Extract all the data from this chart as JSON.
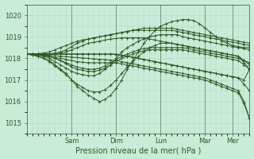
{
  "title": "",
  "xlabel": "Pression niveau de la mer( hPa )",
  "ylabel": "",
  "bg_color": "#c8ecd8",
  "grid_color": "#b0d8c0",
  "line_color": "#2d5a27",
  "marker": "+",
  "markersize": 3,
  "linewidth": 0.7,
  "ylim": [
    1014.5,
    1020.5
  ],
  "yticks": [
    1015,
    1016,
    1017,
    1018,
    1019,
    1020
  ],
  "day_tick_labels": [
    "Sam",
    "Dim",
    "Lun",
    "Mar",
    "Mer"
  ],
  "series": [
    {
      "x": [
        0,
        1,
        2,
        3,
        4,
        5,
        6,
        7,
        8,
        9,
        10,
        11,
        12,
        13,
        14,
        15,
        16,
        17,
        18,
        19,
        20,
        21,
        22,
        23,
        24,
        25,
        26,
        27,
        28,
        29,
        30,
        31,
        32,
        33,
        34,
        35,
        36,
        37,
        38,
        39,
        40
      ],
      "y": [
        1018.2,
        1018.15,
        1018.1,
        1018.0,
        1017.9,
        1017.7,
        1017.5,
        1017.3,
        1017.0,
        1016.7,
        1016.5,
        1016.3,
        1016.15,
        1016.0,
        1016.1,
        1016.3,
        1016.6,
        1017.0,
        1017.5,
        1017.9,
        1018.3,
        1018.7,
        1019.0,
        1019.3,
        1019.5,
        1019.6,
        1019.7,
        1019.75,
        1019.8,
        1019.8,
        1019.75,
        1019.6,
        1019.4,
        1019.2,
        1019.0,
        1018.8,
        1018.7,
        1018.6,
        1018.55,
        1018.5,
        1018.5
      ]
    },
    {
      "x": [
        0,
        1,
        2,
        3,
        4,
        5,
        6,
        7,
        8,
        9,
        10,
        11,
        12,
        13,
        14,
        15,
        16,
        17,
        18,
        19,
        20,
        21,
        22,
        23,
        24,
        25,
        26,
        27,
        28,
        29,
        30,
        31,
        32,
        33,
        34,
        35,
        36,
        37,
        38,
        39,
        40
      ],
      "y": [
        1018.2,
        1018.18,
        1018.15,
        1018.1,
        1018.0,
        1017.85,
        1017.7,
        1017.55,
        1017.4,
        1017.3,
        1017.25,
        1017.2,
        1017.2,
        1017.3,
        1017.5,
        1017.7,
        1018.0,
        1018.3,
        1018.5,
        1018.65,
        1018.8,
        1018.9,
        1019.0,
        1019.05,
        1019.1,
        1019.1,
        1019.1,
        1019.1,
        1019.0,
        1018.95,
        1018.9,
        1018.85,
        1018.8,
        1018.75,
        1018.7,
        1018.65,
        1018.6,
        1018.55,
        1018.5,
        1018.45,
        1018.4
      ]
    },
    {
      "x": [
        0,
        1,
        2,
        3,
        4,
        5,
        6,
        7,
        8,
        9,
        10,
        11,
        12,
        13,
        14,
        15,
        16,
        17,
        18,
        19,
        20,
        21,
        22,
        23,
        24,
        25,
        26,
        27,
        28,
        29,
        30,
        31,
        32,
        33,
        34,
        35,
        36,
        37,
        38,
        39,
        40
      ],
      "y": [
        1018.2,
        1018.2,
        1018.2,
        1018.2,
        1018.2,
        1018.25,
        1018.3,
        1018.4,
        1018.55,
        1018.7,
        1018.8,
        1018.9,
        1018.95,
        1019.0,
        1019.05,
        1019.1,
        1019.15,
        1019.2,
        1019.25,
        1019.3,
        1019.3,
        1019.3,
        1019.3,
        1019.3,
        1019.3,
        1019.3,
        1019.3,
        1019.25,
        1019.2,
        1019.15,
        1019.1,
        1019.05,
        1019.0,
        1018.95,
        1018.9,
        1018.85,
        1018.8,
        1018.75,
        1018.7,
        1018.65,
        1018.6
      ]
    },
    {
      "x": [
        0,
        1,
        2,
        3,
        4,
        5,
        6,
        7,
        8,
        9,
        10,
        11,
        12,
        13,
        14,
        15,
        16,
        17,
        18,
        19,
        20,
        21,
        22,
        23,
        24,
        25,
        26,
        27,
        28,
        29,
        30,
        31,
        32,
        33,
        34,
        35,
        36,
        37,
        38,
        39,
        40
      ],
      "y": [
        1018.2,
        1018.2,
        1018.22,
        1018.25,
        1018.3,
        1018.4,
        1018.5,
        1018.6,
        1018.7,
        1018.8,
        1018.85,
        1018.9,
        1018.95,
        1019.0,
        1019.05,
        1019.1,
        1019.15,
        1019.2,
        1019.25,
        1019.3,
        1019.35,
        1019.4,
        1019.4,
        1019.4,
        1019.4,
        1019.4,
        1019.4,
        1019.35,
        1019.3,
        1019.25,
        1019.2,
        1019.15,
        1019.1,
        1019.05,
        1019.0,
        1018.95,
        1018.9,
        1018.85,
        1018.8,
        1018.75,
        1018.7
      ]
    },
    {
      "x": [
        0,
        1,
        2,
        3,
        4,
        5,
        6,
        7,
        8,
        9,
        10,
        11,
        12,
        13,
        14,
        15,
        16,
        17,
        18,
        19,
        20,
        21,
        22,
        23,
        24,
        25,
        26,
        27,
        28,
        29,
        30,
        31,
        32,
        33,
        34,
        35,
        36,
        37,
        38,
        39,
        40
      ],
      "y": [
        1018.2,
        1018.2,
        1018.18,
        1018.15,
        1018.1,
        1018.0,
        1017.9,
        1017.8,
        1017.7,
        1017.6,
        1017.55,
        1017.5,
        1017.5,
        1017.55,
        1017.65,
        1017.8,
        1017.95,
        1018.1,
        1018.2,
        1018.3,
        1018.4,
        1018.45,
        1018.5,
        1018.5,
        1018.5,
        1018.5,
        1018.5,
        1018.5,
        1018.5,
        1018.45,
        1018.4,
        1018.35,
        1018.3,
        1018.25,
        1018.2,
        1018.15,
        1018.1,
        1018.05,
        1018.0,
        1017.9,
        1017.8
      ]
    },
    {
      "x": [
        0,
        1,
        2,
        3,
        4,
        5,
        6,
        7,
        8,
        9,
        10,
        11,
        12,
        13,
        14,
        15,
        16,
        17,
        18,
        19,
        20,
        21,
        22,
        23,
        24,
        25,
        26,
        27,
        28,
        29,
        30,
        31,
        32,
        33,
        34,
        35,
        36,
        37,
        38,
        39,
        40
      ],
      "y": [
        1018.2,
        1018.2,
        1018.18,
        1018.15,
        1018.1,
        1018.0,
        1017.9,
        1017.75,
        1017.6,
        1017.5,
        1017.45,
        1017.4,
        1017.4,
        1017.45,
        1017.55,
        1017.7,
        1017.85,
        1018.0,
        1018.1,
        1018.2,
        1018.3,
        1018.35,
        1018.4,
        1018.4,
        1018.4,
        1018.4,
        1018.4,
        1018.4,
        1018.4,
        1018.35,
        1018.3,
        1018.25,
        1018.2,
        1018.15,
        1018.1,
        1018.05,
        1018.0,
        1017.95,
        1017.9,
        1017.7,
        1017.5
      ]
    },
    {
      "x": [
        0,
        1,
        2,
        3,
        4,
        5,
        6,
        7,
        8,
        9,
        10,
        11,
        12,
        13,
        14,
        15,
        16,
        17,
        18,
        19,
        20,
        21,
        22,
        23,
        24,
        25,
        26,
        27,
        28,
        29,
        30,
        31,
        32,
        33,
        34,
        35,
        36,
        37,
        38,
        39,
        40
      ],
      "y": [
        1018.2,
        1018.15,
        1018.1,
        1018.0,
        1017.85,
        1017.65,
        1017.45,
        1017.25,
        1017.0,
        1016.8,
        1016.65,
        1016.5,
        1016.45,
        1016.45,
        1016.55,
        1016.75,
        1017.0,
        1017.3,
        1017.6,
        1017.85,
        1018.1,
        1018.3,
        1018.5,
        1018.6,
        1018.7,
        1018.7,
        1018.7,
        1018.65,
        1018.6,
        1018.55,
        1018.5,
        1018.45,
        1018.4,
        1018.35,
        1018.3,
        1018.25,
        1018.2,
        1018.15,
        1018.1,
        1017.9,
        1017.7
      ]
    },
    {
      "x": [
        0,
        1,
        2,
        3,
        4,
        5,
        6,
        7,
        8,
        9,
        10,
        11,
        12,
        13,
        14,
        15,
        16,
        17,
        18,
        19,
        20,
        21,
        22,
        23,
        24,
        25,
        26,
        27,
        28,
        29,
        30,
        31,
        32,
        33,
        34,
        35,
        36,
        37,
        38,
        39,
        40
      ],
      "y": [
        1018.2,
        1018.2,
        1018.2,
        1018.2,
        1018.2,
        1018.2,
        1018.2,
        1018.2,
        1018.2,
        1018.2,
        1018.2,
        1018.2,
        1018.2,
        1018.2,
        1018.2,
        1018.2,
        1018.2,
        1018.15,
        1018.1,
        1018.05,
        1018.0,
        1017.95,
        1017.9,
        1017.85,
        1017.8,
        1017.75,
        1017.7,
        1017.65,
        1017.6,
        1017.55,
        1017.5,
        1017.45,
        1017.4,
        1017.35,
        1017.3,
        1017.25,
        1017.2,
        1017.15,
        1017.1,
        1017.0,
        1017.5
      ]
    },
    {
      "x": [
        0,
        1,
        2,
        3,
        4,
        5,
        6,
        7,
        8,
        9,
        10,
        11,
        12,
        13,
        14,
        15,
        16,
        17,
        18,
        19,
        20,
        21,
        22,
        23,
        24,
        25,
        26,
        27,
        28,
        29,
        30,
        31,
        32,
        33,
        34,
        35,
        36,
        37,
        38,
        39,
        40
      ],
      "y": [
        1018.2,
        1018.2,
        1018.2,
        1018.2,
        1018.2,
        1018.2,
        1018.2,
        1018.2,
        1018.2,
        1018.2,
        1018.2,
        1018.2,
        1018.2,
        1018.2,
        1018.2,
        1018.2,
        1018.18,
        1018.15,
        1018.1,
        1018.05,
        1018.0,
        1017.95,
        1017.9,
        1017.85,
        1017.8,
        1017.75,
        1017.7,
        1017.65,
        1017.6,
        1017.55,
        1017.5,
        1017.45,
        1017.4,
        1017.35,
        1017.3,
        1017.25,
        1017.2,
        1017.15,
        1017.1,
        1016.8,
        1016.5
      ]
    },
    {
      "x": [
        0,
        1,
        2,
        3,
        4,
        5,
        6,
        7,
        8,
        9,
        10,
        11,
        12,
        13,
        14,
        15,
        16,
        17,
        18,
        19,
        20,
        21,
        22,
        23,
        24,
        25,
        26,
        27,
        28,
        29,
        30,
        31,
        32,
        33,
        34,
        35,
        36,
        37,
        38,
        39,
        40
      ],
      "y": [
        1018.2,
        1018.2,
        1018.18,
        1018.16,
        1018.14,
        1018.12,
        1018.1,
        1018.08,
        1018.06,
        1018.04,
        1018.02,
        1018.0,
        1017.98,
        1017.96,
        1017.94,
        1017.92,
        1017.9,
        1017.85,
        1017.8,
        1017.75,
        1017.7,
        1017.65,
        1017.6,
        1017.55,
        1017.5,
        1017.45,
        1017.4,
        1017.35,
        1017.3,
        1017.25,
        1017.2,
        1017.15,
        1017.1,
        1017.0,
        1016.9,
        1016.8,
        1016.7,
        1016.6,
        1016.5,
        1016.0,
        1015.2
      ]
    },
    {
      "x": [
        0,
        1,
        2,
        3,
        4,
        5,
        6,
        7,
        8,
        9,
        10,
        11,
        12,
        13,
        14,
        15,
        16,
        17,
        18,
        19,
        20,
        21,
        22,
        23,
        24,
        25,
        26,
        27,
        28,
        29,
        30,
        31,
        32,
        33,
        34,
        35,
        36,
        37,
        38,
        39,
        40
      ],
      "y": [
        1018.2,
        1018.18,
        1018.15,
        1018.12,
        1018.08,
        1018.04,
        1018.0,
        1017.95,
        1017.9,
        1017.85,
        1017.82,
        1017.8,
        1017.8,
        1017.8,
        1017.8,
        1017.8,
        1017.78,
        1017.75,
        1017.7,
        1017.65,
        1017.6,
        1017.55,
        1017.5,
        1017.45,
        1017.4,
        1017.35,
        1017.3,
        1017.25,
        1017.2,
        1017.15,
        1017.1,
        1017.05,
        1017.0,
        1016.9,
        1016.8,
        1016.7,
        1016.6,
        1016.5,
        1016.4,
        1015.9,
        1015.2
      ]
    },
    {
      "x": [
        0,
        1,
        2,
        3,
        4,
        5,
        6,
        7,
        8,
        9,
        10,
        11,
        12,
        13,
        14,
        15,
        16,
        17,
        18,
        19,
        20,
        21,
        22,
        23,
        24,
        25,
        26,
        27,
        28,
        29,
        30,
        31,
        32,
        33,
        34,
        35,
        36,
        37,
        38,
        39,
        40
      ],
      "y": [
        1018.2,
        1018.2,
        1018.2,
        1018.2,
        1018.2,
        1018.22,
        1018.25,
        1018.3,
        1018.4,
        1018.5,
        1018.6,
        1018.7,
        1018.75,
        1018.8,
        1018.85,
        1018.9,
        1018.92,
        1018.95,
        1018.95,
        1018.95,
        1018.95,
        1018.95,
        1018.9,
        1018.85,
        1018.8,
        1018.75,
        1018.7,
        1018.65,
        1018.6,
        1018.55,
        1018.5,
        1018.45,
        1018.4,
        1018.35,
        1018.3,
        1018.25,
        1018.2,
        1018.15,
        1018.1,
        1017.8,
        1017.5
      ]
    }
  ]
}
